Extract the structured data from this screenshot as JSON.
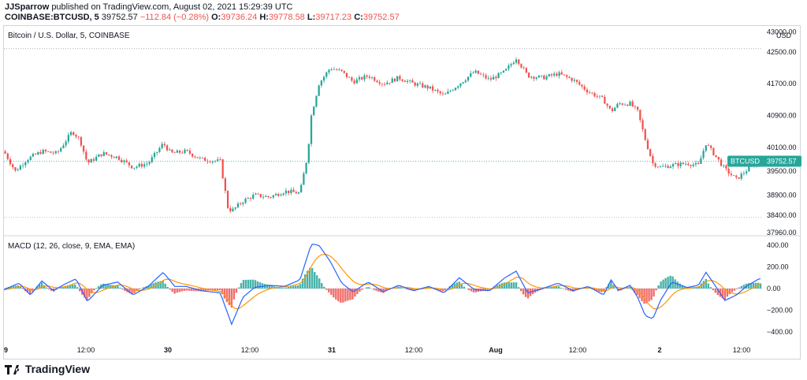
{
  "header": {
    "publisher": "JJSparrow",
    "published_text": "published on TradingView.com, August 02, 2021 15:29:39 UTC",
    "symbol": "COINBASE:BTCUSD, 5",
    "last": "39752.57",
    "change": "−112.84 (−0.28%)",
    "o_label": "O:",
    "o_value": "39736.24",
    "h_label": "H:",
    "h_value": "39778.58",
    "l_label": "L:",
    "l_value": "39717.23",
    "c_label": "C:",
    "c_value": "39752.57"
  },
  "footer": {
    "brand": "TradingView"
  },
  "colors": {
    "up": "#26a69a",
    "down": "#ef5350",
    "macd": "#2962ff",
    "signal": "#ff9800",
    "price_tag": "#26a69a",
    "grid": "#c8c8c8",
    "axis_text": "#131722"
  },
  "chart_data": [
    {
      "type": "candlestick",
      "title": "Bitcoin / U.S. Dollar, 5, COINBASE",
      "currency_label": "USD",
      "ylim": [
        37900,
        43150
      ],
      "ytick_labels": [
        "43000.00",
        "42500.00",
        "41700.00",
        "40900.00",
        "40100.00",
        "39500.00",
        "38900.00",
        "38400.00",
        "37960.00"
      ],
      "yticks": [
        43000,
        42500,
        41700,
        40900,
        40100,
        39500,
        38900,
        38400,
        37960
      ],
      "price_line": 39752.57,
      "price_tag": {
        "symbol": "BTCUSD",
        "value": "39752.57"
      },
      "dotted_levels": [
        42580,
        38340
      ],
      "x_range": [
        0,
        100
      ],
      "xtick_labels": [
        "9",
        "12:00",
        "30",
        "12:00",
        "31",
        "12:00",
        "Aug",
        "12:00",
        "2",
        "12:00"
      ],
      "xticks": [
        0,
        10.8,
        21.6,
        32.4,
        43.2,
        54,
        64.8,
        75.6,
        86.4,
        97.2
      ],
      "path": [
        [
          0,
          40000
        ],
        [
          1.5,
          39500
        ],
        [
          3,
          39800
        ],
        [
          5,
          40000
        ],
        [
          7,
          39950
        ],
        [
          9,
          40500
        ],
        [
          10,
          40300
        ],
        [
          11,
          39700
        ],
        [
          13,
          39950
        ],
        [
          15,
          39850
        ],
        [
          17,
          39600
        ],
        [
          19,
          39700
        ],
        [
          21,
          40200
        ],
        [
          22,
          39950
        ],
        [
          24,
          40000
        ],
        [
          26,
          39800
        ],
        [
          28.5,
          39750
        ],
        [
          29.5,
          38600
        ],
        [
          30,
          38500
        ],
        [
          31.5,
          38750
        ],
        [
          33,
          38900
        ],
        [
          35,
          38850
        ],
        [
          37,
          39000
        ],
        [
          39,
          38950
        ],
        [
          40,
          39900
        ],
        [
          40.5,
          40900
        ],
        [
          41.5,
          41700
        ],
        [
          43,
          42100
        ],
        [
          44.5,
          42000
        ],
        [
          46,
          41750
        ],
        [
          48,
          41900
        ],
        [
          50,
          41700
        ],
        [
          52,
          41850
        ],
        [
          54,
          41700
        ],
        [
          56,
          41600
        ],
        [
          58,
          41400
        ],
        [
          60,
          41700
        ],
        [
          62,
          42000
        ],
        [
          64,
          41800
        ],
        [
          66,
          42000
        ],
        [
          67.5,
          42350
        ],
        [
          69,
          41900
        ],
        [
          71,
          41850
        ],
        [
          73,
          41950
        ],
        [
          75,
          41800
        ],
        [
          77,
          41500
        ],
        [
          79,
          41300
        ],
        [
          80,
          41000
        ],
        [
          81,
          41200
        ],
        [
          82.5,
          41200
        ],
        [
          83.5,
          41000
        ],
        [
          84.5,
          40300
        ],
        [
          85.5,
          39700
        ],
        [
          86.5,
          39600
        ],
        [
          88,
          39650
        ],
        [
          90,
          39700
        ],
        [
          91.5,
          39650
        ],
        [
          92.5,
          40200
        ],
        [
          93.5,
          39950
        ],
        [
          95,
          39550
        ],
        [
          96.5,
          39300
        ],
        [
          98,
          39550
        ],
        [
          99.5,
          39752.57
        ]
      ]
    },
    {
      "type": "macd",
      "title": "MACD (12, 26, close, 9, EMA, EMA)",
      "ylim": [
        -480,
        480
      ],
      "ytick_labels": [
        "400.00",
        "200.00",
        "0.00",
        "−200.00",
        "−400.00"
      ],
      "yticks": [
        400,
        200,
        0,
        -200,
        -400
      ],
      "macd_path": [
        [
          0,
          -10
        ],
        [
          2,
          50
        ],
        [
          3.5,
          -60
        ],
        [
          5,
          70
        ],
        [
          6.5,
          -20
        ],
        [
          8,
          40
        ],
        [
          9.5,
          90
        ],
        [
          11,
          -120
        ],
        [
          13,
          30
        ],
        [
          15,
          60
        ],
        [
          17,
          -60
        ],
        [
          19,
          20
        ],
        [
          21,
          150
        ],
        [
          22.5,
          20
        ],
        [
          24,
          20
        ],
        [
          26,
          -20
        ],
        [
          28.5,
          -40
        ],
        [
          30,
          -330
        ],
        [
          31.5,
          -80
        ],
        [
          33,
          10
        ],
        [
          35,
          30
        ],
        [
          37,
          20
        ],
        [
          39,
          80
        ],
        [
          40.5,
          410
        ],
        [
          41.5,
          400
        ],
        [
          43,
          250
        ],
        [
          44.5,
          50
        ],
        [
          46,
          -30
        ],
        [
          48,
          60
        ],
        [
          50,
          -30
        ],
        [
          52,
          30
        ],
        [
          54,
          -20
        ],
        [
          56,
          20
        ],
        [
          58,
          -40
        ],
        [
          60,
          100
        ],
        [
          62,
          -10
        ],
        [
          64,
          -20
        ],
        [
          66,
          100
        ],
        [
          67.5,
          160
        ],
        [
          69,
          -40
        ],
        [
          71,
          0
        ],
        [
          73,
          50
        ],
        [
          75,
          -20
        ],
        [
          77,
          20
        ],
        [
          79,
          -60
        ],
        [
          80,
          80
        ],
        [
          81,
          -20
        ],
        [
          82.5,
          30
        ],
        [
          83.5,
          -80
        ],
        [
          84.5,
          -250
        ],
        [
          85.5,
          -280
        ],
        [
          86.5,
          -110
        ],
        [
          88,
          60
        ],
        [
          90,
          10
        ],
        [
          91.5,
          30
        ],
        [
          92.5,
          150
        ],
        [
          93.5,
          50
        ],
        [
          95,
          -110
        ],
        [
          96.5,
          -60
        ],
        [
          98,
          30
        ],
        [
          99.5,
          90
        ]
      ]
    }
  ]
}
